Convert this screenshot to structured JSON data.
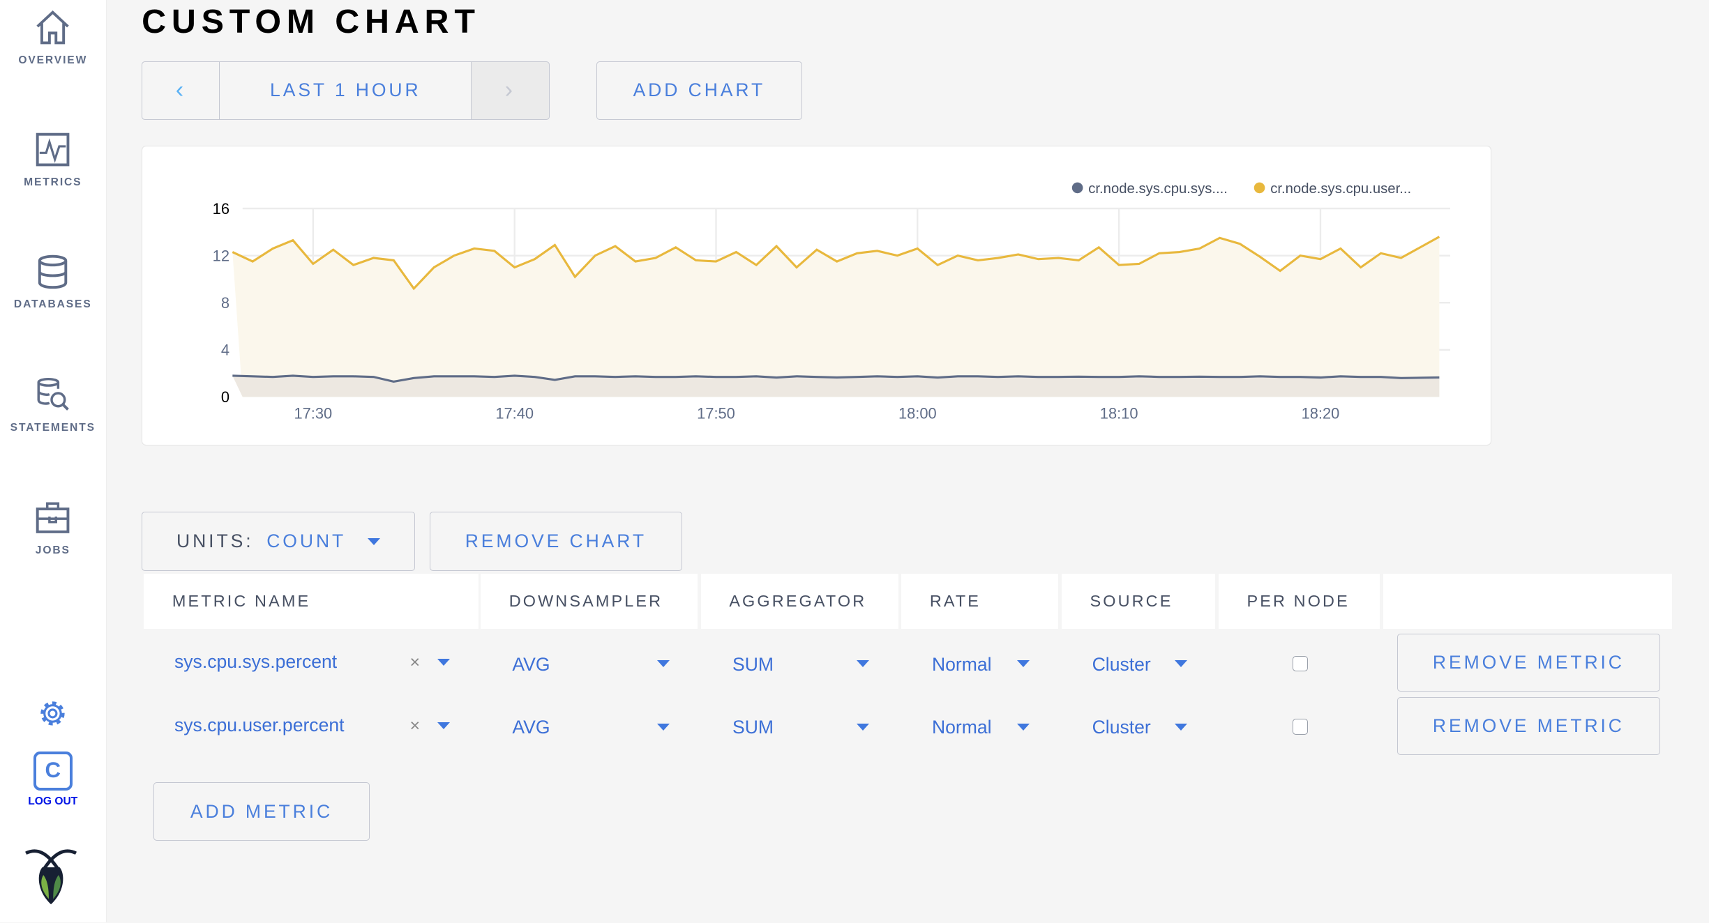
{
  "sidebar": {
    "items": [
      {
        "label": "OVERVIEW",
        "icon": "home-icon"
      },
      {
        "label": "METRICS",
        "icon": "metrics-icon"
      },
      {
        "label": "DATABASES",
        "icon": "database-icon"
      },
      {
        "label": "STATEMENTS",
        "icon": "statements-icon"
      },
      {
        "label": "JOBS",
        "icon": "jobs-icon"
      }
    ],
    "settings_icon": "gear-icon",
    "user_initial": "C",
    "logout_label": "LOG OUT",
    "logo": "cockroach-logo"
  },
  "page": {
    "title": "CUSTOM CHART"
  },
  "toolbar": {
    "prev": "‹",
    "range": "LAST 1 HOUR",
    "next": "›",
    "add_chart": "ADD CHART"
  },
  "chart_data": {
    "type": "area",
    "legend_placement": "top-right",
    "grid": true,
    "ylim": [
      0,
      16
    ],
    "yticks": [
      "0",
      "4",
      "8",
      "12",
      "16"
    ],
    "xticks": [
      "17:30",
      "17:40",
      "17:50",
      "18:00",
      "18:10",
      "18:20"
    ],
    "x": [
      "17:26",
      "17:27",
      "17:28",
      "17:29",
      "17:30",
      "17:31",
      "17:32",
      "17:33",
      "17:34",
      "17:35",
      "17:36",
      "17:37",
      "17:38",
      "17:39",
      "17:40",
      "17:41",
      "17:42",
      "17:43",
      "17:44",
      "17:45",
      "17:46",
      "17:47",
      "17:48",
      "17:49",
      "17:50",
      "17:51",
      "17:52",
      "17:53",
      "17:54",
      "17:55",
      "17:56",
      "17:57",
      "17:58",
      "17:59",
      "18:00",
      "18:01",
      "18:02",
      "18:03",
      "18:04",
      "18:05",
      "18:06",
      "18:07",
      "18:08",
      "18:09",
      "18:10",
      "18:11",
      "18:12",
      "18:13",
      "18:14",
      "18:15",
      "18:16",
      "18:17",
      "18:18",
      "18:19",
      "18:20",
      "18:21",
      "18:22",
      "18:23",
      "18:24",
      "18:25"
    ],
    "series": [
      {
        "name": "cr.node.sys.cpu.sys....",
        "color": "#5f6c87",
        "values": [
          1.8,
          1.75,
          1.7,
          1.8,
          1.7,
          1.75,
          1.75,
          1.7,
          1.3,
          1.6,
          1.75,
          1.75,
          1.75,
          1.7,
          1.8,
          1.7,
          1.45,
          1.75,
          1.75,
          1.7,
          1.75,
          1.7,
          1.7,
          1.75,
          1.7,
          1.7,
          1.75,
          1.65,
          1.75,
          1.7,
          1.65,
          1.7,
          1.75,
          1.7,
          1.75,
          1.65,
          1.75,
          1.75,
          1.7,
          1.75,
          1.7,
          1.7,
          1.72,
          1.7,
          1.7,
          1.75,
          1.7,
          1.7,
          1.72,
          1.7,
          1.7,
          1.75,
          1.7,
          1.7,
          1.65,
          1.75,
          1.7,
          1.7,
          1.6,
          1.65
        ]
      },
      {
        "name": "cr.node.sys.cpu.user...",
        "color": "#e8b83d",
        "values": [
          12.3,
          11.5,
          12.6,
          13.3,
          11.3,
          12.5,
          11.2,
          11.8,
          11.6,
          9.2,
          11.0,
          12.0,
          12.6,
          12.4,
          11.0,
          11.7,
          12.9,
          10.2,
          12.0,
          12.8,
          11.5,
          11.8,
          12.7,
          11.6,
          11.5,
          12.3,
          11.2,
          12.8,
          11.0,
          12.5,
          11.5,
          12.2,
          12.4,
          12.0,
          12.6,
          11.2,
          12.0,
          11.6,
          11.8,
          12.1,
          11.7,
          11.8,
          11.6,
          12.7,
          11.2,
          11.3,
          12.2,
          12.3,
          12.6,
          13.5,
          13.0,
          11.9,
          10.7,
          12.0,
          11.7,
          12.6,
          11.0,
          12.2,
          11.8,
          13.6
        ]
      }
    ]
  },
  "controls": {
    "units_label": "UNITS:",
    "units_value": "COUNT",
    "remove_chart": "REMOVE CHART"
  },
  "table": {
    "headers": [
      "METRIC NAME",
      "DOWNSAMPLER",
      "AGGREGATOR",
      "RATE",
      "SOURCE",
      "PER NODE"
    ],
    "rows": [
      {
        "metric": "sys.cpu.sys.percent",
        "downsampler": "AVG",
        "aggregator": "SUM",
        "rate": "Normal",
        "source": "Cluster",
        "per_node": false,
        "remove": "REMOVE METRIC"
      },
      {
        "metric": "sys.cpu.user.percent",
        "downsampler": "AVG",
        "aggregator": "SUM",
        "rate": "Normal",
        "source": "Cluster",
        "per_node": false,
        "remove": "REMOVE METRIC"
      }
    ],
    "clear": "×",
    "add_metric": "ADD METRIC"
  }
}
